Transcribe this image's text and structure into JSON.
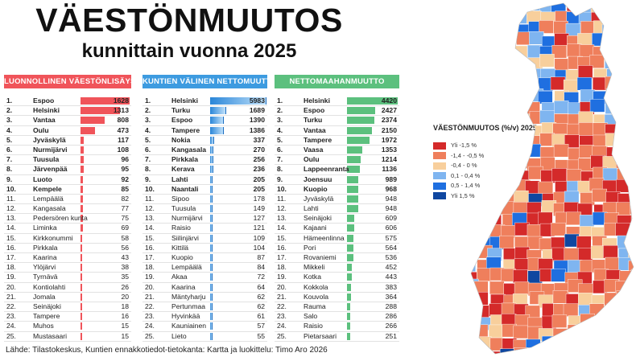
{
  "title": "VÄESTÖNMUUTOS",
  "subtitle": "kunnittain vuonna 2025",
  "footer": "Lähde: Tilastokeskus, Kuntien ennakkotiedot-tietokanta: Kartta ja luokittelu: Timo Aro 2026",
  "chart_data": [
    {
      "type": "table",
      "title": "LUONNOLLINEN VÄESTÖNLISÄYS",
      "color": "#f0545a",
      "rows": [
        [
          "1.",
          "Espoo",
          1628
        ],
        [
          "2.",
          "Helsinki",
          1313
        ],
        [
          "3.",
          "Vantaa",
          808
        ],
        [
          "4.",
          "Oulu",
          473
        ],
        [
          "5.",
          "Jyväskylä",
          117
        ],
        [
          "6.",
          "Nurmijärvi",
          108
        ],
        [
          "7.",
          "Tuusula",
          96
        ],
        [
          "8.",
          "Järvenpää",
          95
        ],
        [
          "9.",
          "Luoto",
          92
        ],
        [
          "10.",
          "Kempele",
          85
        ],
        [
          "11.",
          "Lempäälä",
          82
        ],
        [
          "12.",
          "Kangasala",
          77
        ],
        [
          "13.",
          "Pedersören kunta",
          75
        ],
        [
          "14.",
          "Liminka",
          69
        ],
        [
          "15.",
          "Kirkkonummi",
          58
        ],
        [
          "16.",
          "Pirkkala",
          56
        ],
        [
          "17.",
          "Kaarina",
          43
        ],
        [
          "18.",
          "Ylöjärvi",
          38
        ],
        [
          "19.",
          "Tyrnävä",
          35
        ],
        [
          "20.",
          "Kontiolahti",
          26
        ],
        [
          "21.",
          "Jomala",
          20
        ],
        [
          "22.",
          "Seinäjoki",
          18
        ],
        [
          "23.",
          "Tampere",
          16
        ],
        [
          "24.",
          "Muhos",
          15
        ],
        [
          "25.",
          "Mustasaari",
          15
        ]
      ]
    },
    {
      "type": "table",
      "title": "KUNTIEN VÄLINEN NETTOMUUTTO",
      "color": "#3d9be0",
      "rows": [
        [
          "1.",
          "Helsinki",
          5983
        ],
        [
          "2.",
          "Turku",
          1689
        ],
        [
          "3.",
          "Espoo",
          1390
        ],
        [
          "4.",
          "Tampere",
          1386
        ],
        [
          "5.",
          "Nokia",
          337
        ],
        [
          "6.",
          "Kangasala",
          270
        ],
        [
          "7.",
          "Pirkkala",
          256
        ],
        [
          "8.",
          "Kerava",
          236
        ],
        [
          "9.",
          "Lahti",
          205
        ],
        [
          "10.",
          "Naantali",
          205
        ],
        [
          "11.",
          "Sipoo",
          178
        ],
        [
          "12.",
          "Tuusula",
          149
        ],
        [
          "13.",
          "Nurmijärvi",
          127
        ],
        [
          "14.",
          "Raisio",
          121
        ],
        [
          "15.",
          "Siilinjärvi",
          109
        ],
        [
          "16.",
          "Kittilä",
          104
        ],
        [
          "17.",
          "Kuopio",
          87
        ],
        [
          "18.",
          "Lempäälä",
          84
        ],
        [
          "19.",
          "Akaa",
          72
        ],
        [
          "20.",
          "Kaarina",
          64
        ],
        [
          "21.",
          "Mäntyharju",
          62
        ],
        [
          "22.",
          "Pertunmaa",
          62
        ],
        [
          "23.",
          "Hyvinkää",
          61
        ],
        [
          "24.",
          "Kauniainen",
          57
        ],
        [
          "25.",
          "Lieto",
          55
        ]
      ]
    },
    {
      "type": "table",
      "title": "NETTOMAAHANMUUTTO",
      "color": "#5cc07e",
      "rows": [
        [
          "1.",
          "Helsinki",
          4420
        ],
        [
          "2.",
          "Espoo",
          2427
        ],
        [
          "3.",
          "Turku",
          2374
        ],
        [
          "4.",
          "Vantaa",
          2150
        ],
        [
          "5.",
          "Tampere",
          1972
        ],
        [
          "6.",
          "Vaasa",
          1353
        ],
        [
          "7.",
          "Oulu",
          1214
        ],
        [
          "8.",
          "Lappeenranta",
          1136
        ],
        [
          "9.",
          "Joensuu",
          989
        ],
        [
          "10.",
          "Kuopio",
          968
        ],
        [
          "11.",
          "Jyväskylä",
          948
        ],
        [
          "12.",
          "Lahti",
          948
        ],
        [
          "13.",
          "Seinäjoki",
          609
        ],
        [
          "14.",
          "Kajaani",
          606
        ],
        [
          "15.",
          "Hämeenlinna",
          575
        ],
        [
          "16.",
          "Pori",
          564
        ],
        [
          "17.",
          "Rovaniemi",
          536
        ],
        [
          "18.",
          "Mikkeli",
          452
        ],
        [
          "19.",
          "Kotka",
          443
        ],
        [
          "20.",
          "Kokkola",
          383
        ],
        [
          "21.",
          "Kouvola",
          364
        ],
        [
          "22.",
          "Rauma",
          288
        ],
        [
          "23.",
          "Salo",
          286
        ],
        [
          "24.",
          "Raisio",
          266
        ],
        [
          "25.",
          "Pietarsaari",
          251
        ]
      ]
    }
  ],
  "map": {
    "legend_title": "VÄESTÖNMUUTOS (%/v) 2025",
    "classes": [
      {
        "label": "Yli -1,5 %",
        "color": "#d42a2a"
      },
      {
        "label": "-1,4 - -0,5 %",
        "color": "#ef7f5c"
      },
      {
        "label": "-0,4 - 0 %",
        "color": "#f8cf9c"
      },
      {
        "label": "0,1 - 0,4 %",
        "color": "#7fb5f0"
      },
      {
        "label": "0,5 - 1,4 %",
        "color": "#1f6fe0"
      },
      {
        "label": "Yli 1,5 %",
        "color": "#0f47a0"
      }
    ]
  }
}
